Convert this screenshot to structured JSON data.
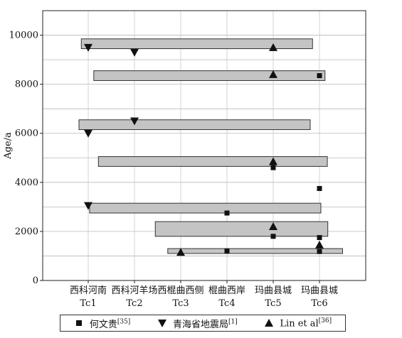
{
  "chart_data": {
    "type": "range-bar",
    "ylabel": "Age/a",
    "ylim": [
      0,
      11000
    ],
    "yticks": [
      0,
      2000,
      4000,
      6000,
      8000,
      10000
    ],
    "grid_y": true,
    "categories": [
      {
        "name": "西科河南",
        "code": "Tc1"
      },
      {
        "name": "西科河羊场",
        "code": "Tc2"
      },
      {
        "name": "西棍曲西侧",
        "code": "Tc3"
      },
      {
        "name": "棍曲西岸",
        "code": "Tc4"
      },
      {
        "name": "玛曲县城",
        "code": "Tc5"
      },
      {
        "name": "玛曲县城",
        "code": "Tc6"
      }
    ],
    "ranges": [
      {
        "x_start": 0.85,
        "x_end": 5.85,
        "y_low": 9450,
        "y_high": 9850
      },
      {
        "x_start": 1.12,
        "x_end": 6.12,
        "y_low": 8150,
        "y_high": 8550
      },
      {
        "x_start": 0.8,
        "x_end": 5.8,
        "y_low": 6150,
        "y_high": 6550
      },
      {
        "x_start": 1.22,
        "x_end": 6.17,
        "y_low": 4650,
        "y_high": 5050
      },
      {
        "x_start": 1.03,
        "x_end": 6.03,
        "y_low": 2750,
        "y_high": 3150
      },
      {
        "x_start": 2.45,
        "x_end": 6.18,
        "y_low": 1800,
        "y_high": 2400
      },
      {
        "x_start": 2.72,
        "x_end": 6.5,
        "y_low": 1100,
        "y_high": 1300
      }
    ],
    "series": [
      {
        "name": "何文贵",
        "ref": "[35]",
        "marker": "square",
        "points": [
          {
            "x": 4,
            "y": 2750
          },
          {
            "x": 4,
            "y": 1200
          },
          {
            "x": 5,
            "y": 4600
          },
          {
            "x": 5,
            "y": 1800
          },
          {
            "x": 6,
            "y": 8350
          },
          {
            "x": 6,
            "y": 3750
          },
          {
            "x": 6,
            "y": 1750
          },
          {
            "x": 6,
            "y": 1180
          }
        ]
      },
      {
        "name": "青海省地震局",
        "ref": "[1]",
        "marker": "triangle-down",
        "points": [
          {
            "x": 1,
            "y": 9500
          },
          {
            "x": 1,
            "y": 6000
          },
          {
            "x": 1,
            "y": 3050
          },
          {
            "x": 2,
            "y": 9300
          },
          {
            "x": 2,
            "y": 6500
          }
        ]
      },
      {
        "name": "Lin et al",
        "ref": "[36]",
        "marker": "triangle-up",
        "points": [
          {
            "x": 3,
            "y": 1150
          },
          {
            "x": 5,
            "y": 9500
          },
          {
            "x": 5,
            "y": 8400
          },
          {
            "x": 5,
            "y": 4850
          },
          {
            "x": 5,
            "y": 2200
          },
          {
            "x": 6,
            "y": 1450
          }
        ]
      }
    ]
  }
}
